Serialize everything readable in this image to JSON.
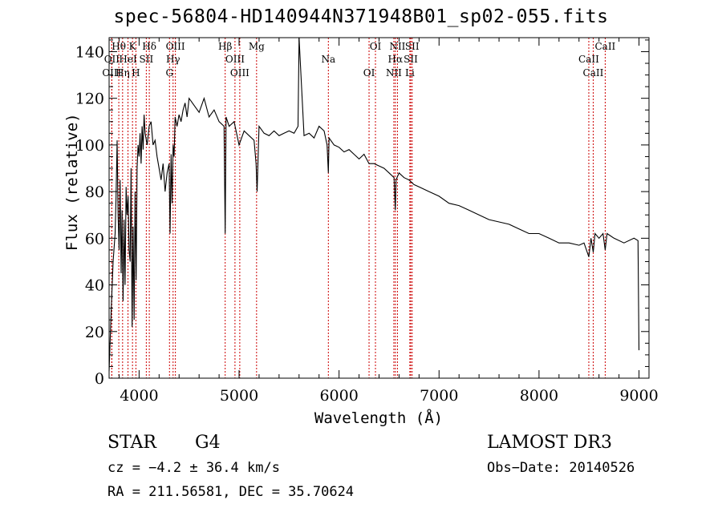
{
  "chart_data": {
    "type": "line",
    "title": "spec-56804-HD140944N371948B01_sp02-055.fits",
    "xlabel": "Wavelength (Å)",
    "ylabel": "Flux (relative)",
    "xlim": [
      3700,
      9100
    ],
    "ylim": [
      0,
      146
    ],
    "x_ticks": [
      4000,
      5000,
      6000,
      7000,
      8000,
      9000
    ],
    "y_ticks": [
      0,
      20,
      40,
      60,
      80,
      100,
      120,
      140
    ],
    "series": [
      {
        "name": "spectrum",
        "x": [
          3700,
          3720,
          3740,
          3760,
          3770,
          3780,
          3790,
          3800,
          3810,
          3820,
          3830,
          3840,
          3850,
          3860,
          3870,
          3880,
          3890,
          3900,
          3910,
          3920,
          3930,
          3940,
          3950,
          3960,
          3970,
          3980,
          3990,
          4000,
          4010,
          4020,
          4030,
          4040,
          4050,
          4060,
          4080,
          4100,
          4120,
          4140,
          4160,
          4180,
          4200,
          4220,
          4240,
          4260,
          4280,
          4300,
          4310,
          4320,
          4330,
          4340,
          4350,
          4360,
          4380,
          4400,
          4420,
          4440,
          4460,
          4480,
          4500,
          4550,
          4600,
          4650,
          4700,
          4750,
          4800,
          4850,
          4861,
          4870,
          4900,
          4950,
          5000,
          5050,
          5100,
          5150,
          5170,
          5180,
          5200,
          5250,
          5300,
          5350,
          5400,
          5450,
          5500,
          5550,
          5590,
          5600,
          5650,
          5700,
          5750,
          5800,
          5850,
          5880,
          5893,
          5900,
          5950,
          6000,
          6050,
          6100,
          6150,
          6200,
          6250,
          6300,
          6350,
          6400,
          6450,
          6500,
          6550,
          6563,
          6570,
          6600,
          6650,
          6700,
          6750,
          6800,
          6900,
          7000,
          7100,
          7200,
          7300,
          7400,
          7500,
          7600,
          7700,
          7800,
          7900,
          8000,
          8100,
          8200,
          8300,
          8400,
          8450,
          8498,
          8520,
          8542,
          8560,
          8600,
          8640,
          8662,
          8680,
          8750,
          8850,
          8950,
          8990,
          9000
        ],
        "values": [
          3,
          28,
          50,
          62,
          78,
          102,
          70,
          55,
          85,
          45,
          72,
          33,
          68,
          40,
          82,
          70,
          78,
          55,
          50,
          90,
          22,
          65,
          25,
          80,
          42,
          90,
          100,
          95,
          105,
          92,
          108,
          98,
          113,
          105,
          100,
          108,
          110,
          100,
          102,
          95,
          90,
          85,
          92,
          80,
          88,
          92,
          62,
          96,
          75,
          100,
          95,
          112,
          108,
          113,
          110,
          115,
          118,
          112,
          120,
          117,
          114,
          120,
          112,
          115,
          110,
          108,
          62,
          112,
          108,
          110,
          100,
          106,
          104,
          102,
          92,
          80,
          108,
          105,
          104,
          106,
          104,
          105,
          106,
          105,
          108,
          146,
          104,
          105,
          103,
          108,
          106,
          100,
          88,
          103,
          100,
          99,
          97,
          98,
          96,
          94,
          96,
          92,
          92,
          91,
          90,
          88,
          86,
          72,
          85,
          88,
          86,
          85,
          83,
          82,
          80,
          78,
          75,
          74,
          72,
          70,
          68,
          67,
          66,
          64,
          62,
          62,
          60,
          58,
          58,
          57,
          58,
          52,
          60,
          54,
          62,
          60,
          62,
          55,
          62,
          60,
          58,
          60,
          59,
          12
        ]
      }
    ],
    "lines_top": [
      {
        "label": "Hθ",
        "wave": 3797
      },
      {
        "label": "OII",
        "wave": 3727
      },
      {
        "label": "OIII",
        "wave": 3727
      },
      {
        "label": "K",
        "wave": 3934
      },
      {
        "label": "HeI",
        "wave": 3889
      },
      {
        "label": "Hη",
        "wave": 3835
      },
      {
        "label": "Hδ",
        "wave": 4102
      },
      {
        "label": "SII",
        "wave": 4072
      },
      {
        "label": "H",
        "wave": 3968
      },
      {
        "label": "OIII",
        "wave": 4363
      },
      {
        "label": "Hγ",
        "wave": 4340
      },
      {
        "label": "G",
        "wave": 4304
      },
      {
        "label": "Hβ",
        "wave": 4861
      },
      {
        "label": "OIII",
        "wave": 4959
      },
      {
        "label": "OIII",
        "wave": 5007
      },
      {
        "label": "Mg",
        "wave": 5175
      },
      {
        "label": "Na",
        "wave": 5893
      },
      {
        "label": "OI",
        "wave": 6300
      },
      {
        "label": "OI",
        "wave": 6364
      },
      {
        "label": "Hα",
        "wave": 6563
      },
      {
        "label": "NII",
        "wave": 6548
      },
      {
        "label": "NII",
        "wave": 6584
      },
      {
        "label": "SII",
        "wave": 6717
      },
      {
        "label": "Li",
        "wave": 6708
      },
      {
        "label": "SII",
        "wave": 6731
      },
      {
        "label": "CaII",
        "wave": 8498
      },
      {
        "label": "CaII",
        "wave": 8542
      },
      {
        "label": "CaII",
        "wave": 8662
      }
    ]
  },
  "info": {
    "class": "STAR",
    "subclass": "G4",
    "survey": "LAMOST DR3",
    "cz": "cz = −4.2 ± 36.4 km/s",
    "obs_date": "Obs−Date: 20140526",
    "coords": "RA = 211.56581, DEC =  35.70624"
  }
}
